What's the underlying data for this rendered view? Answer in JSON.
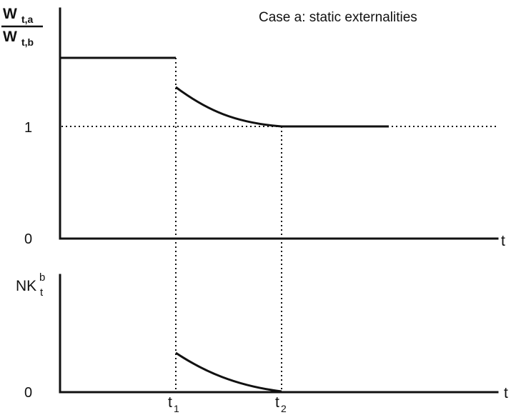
{
  "figure": {
    "title": "Case a: static externalities"
  },
  "top_panel": {
    "ylabel_numerator": "W",
    "ylabel_numerator_sub": "t,a",
    "ylabel_denominator": "W",
    "ylabel_denominator_sub": "t,b",
    "tick_one": "1",
    "tick_zero": "0",
    "xlabel": "t"
  },
  "bottom_panel": {
    "ylabel_main": "NK",
    "ylabel_sup": "b",
    "ylabel_sub": "t",
    "tick_zero": "0",
    "xlabel": "t",
    "t1_main": "t",
    "t1_sub": "1",
    "t2_main": "t",
    "t2_sub": "2"
  }
}
